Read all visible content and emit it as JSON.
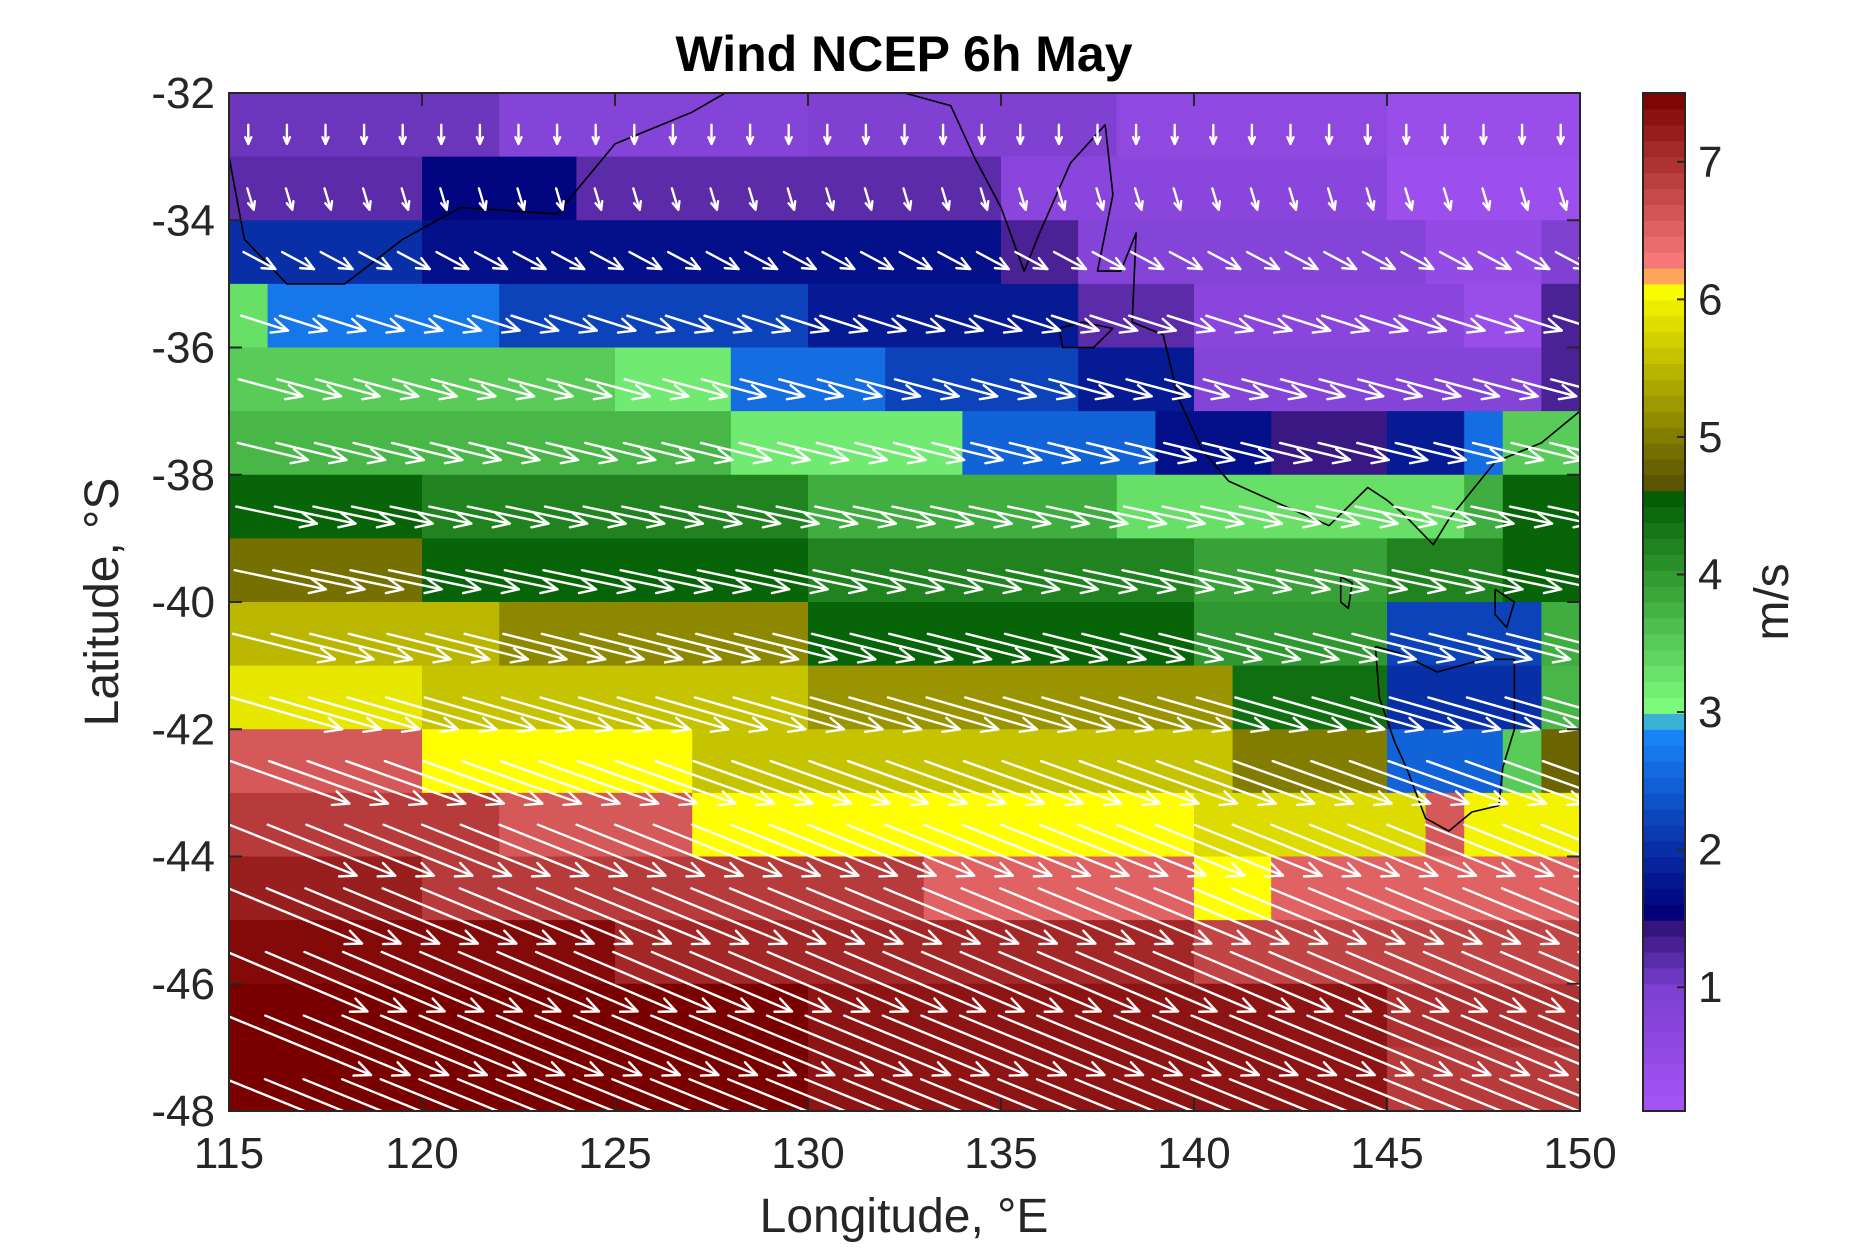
{
  "chart_data": {
    "type": "heatmap",
    "subtype": "wind speed map with vector arrows",
    "title": "Wind NCEP 6h May",
    "xlabel": "Longitude, °E",
    "ylabel": "Latitude, °S",
    "xlim": [
      115,
      150
    ],
    "ylim": [
      -48,
      -32
    ],
    "x_ticks": [
      115,
      120,
      125,
      130,
      135,
      140,
      145,
      150
    ],
    "y_ticks": [
      -32,
      -34,
      -36,
      -38,
      -40,
      -42,
      -44,
      -46,
      -48
    ],
    "x_tick_labels": [
      "115",
      "120",
      "125",
      "130",
      "135",
      "140",
      "145",
      "150"
    ],
    "y_tick_labels": [
      "-32",
      "-34",
      "-36",
      "-38",
      "-40",
      "-42",
      "-44",
      "-46",
      "-48"
    ],
    "colorbar": {
      "label": "m/s",
      "range": [
        0.1,
        7.5
      ],
      "ticks": [
        1,
        2,
        3,
        4,
        5,
        6,
        7
      ],
      "tick_labels": [
        "1",
        "2",
        "3",
        "4",
        "5",
        "6",
        "7"
      ],
      "colormap_stops": [
        {
          "value": 0.1,
          "color": "#a855f7"
        },
        {
          "value": 1.0,
          "color": "#7b3fcf"
        },
        {
          "value": 1.5,
          "color": "#2a0e70"
        },
        {
          "value": 1.55,
          "color": "#00007a"
        },
        {
          "value": 2.9,
          "color": "#1a8cff"
        },
        {
          "value": 3.0,
          "color": "#80ff80"
        },
        {
          "value": 4.6,
          "color": "#005a00"
        },
        {
          "value": 4.65,
          "color": "#5a5200"
        },
        {
          "value": 6.1,
          "color": "#ffff00"
        },
        {
          "value": 6.2,
          "color": "#ff8080"
        },
        {
          "value": 7.5,
          "color": "#7a0000"
        }
      ]
    },
    "grid": {
      "lon_start": 115.0,
      "lon_step": 1.0,
      "lon_count": 36,
      "lat_start": -32.5,
      "lat_step": -1.0,
      "lat_count": 16
    },
    "wind_speed_rows": [
      {
        "lat": -32.5,
        "segments": [
          [
            115,
            122,
            1.1
          ],
          [
            122,
            130,
            0.8
          ],
          [
            130,
            138,
            0.9
          ],
          [
            138,
            145,
            0.6
          ],
          [
            145,
            150,
            0.4
          ]
        ]
      },
      {
        "lat": -33.5,
        "segments": [
          [
            115,
            120,
            1.2
          ],
          [
            120,
            124,
            1.6
          ],
          [
            124,
            135,
            1.2
          ],
          [
            135,
            145,
            0.7
          ],
          [
            145,
            150,
            0.35
          ]
        ]
      },
      {
        "lat": -34.5,
        "segments": [
          [
            115,
            120,
            2.0
          ],
          [
            120,
            135,
            1.7
          ],
          [
            135,
            137,
            1.3
          ],
          [
            137,
            146,
            0.8
          ],
          [
            146,
            149,
            0.5
          ],
          [
            149,
            150,
            0.9
          ]
        ]
      },
      {
        "lat": -35.5,
        "segments": [
          [
            115,
            116,
            3.3
          ],
          [
            116,
            122,
            2.7
          ],
          [
            122,
            130,
            2.2
          ],
          [
            130,
            137,
            1.8
          ],
          [
            137,
            140,
            1.2
          ],
          [
            140,
            147,
            0.7
          ],
          [
            147,
            149,
            0.4
          ],
          [
            149,
            150,
            1.3
          ]
        ]
      },
      {
        "lat": -36.5,
        "segments": [
          [
            115,
            125,
            3.5
          ],
          [
            125,
            128,
            3.2
          ],
          [
            128,
            132,
            2.6
          ],
          [
            132,
            137,
            2.2
          ],
          [
            137,
            140,
            1.8
          ],
          [
            140,
            149,
            0.8
          ],
          [
            149,
            150,
            1.3
          ]
        ]
      },
      {
        "lat": -37.5,
        "segments": [
          [
            115,
            128,
            3.7
          ],
          [
            128,
            134,
            3.2
          ],
          [
            134,
            139,
            2.5
          ],
          [
            139,
            142,
            1.7
          ],
          [
            142,
            145,
            1.4
          ],
          [
            145,
            147,
            1.8
          ],
          [
            147,
            148,
            2.6
          ],
          [
            148,
            150,
            3.5
          ]
        ]
      },
      {
        "lat": -38.5,
        "segments": [
          [
            115,
            120,
            4.5
          ],
          [
            120,
            130,
            4.2
          ],
          [
            130,
            138,
            3.8
          ],
          [
            138,
            147,
            3.3
          ],
          [
            147,
            148,
            3.8
          ],
          [
            148,
            150,
            4.5
          ]
        ]
      },
      {
        "lat": -39.5,
        "segments": [
          [
            115,
            120,
            4.9
          ],
          [
            120,
            130,
            4.5
          ],
          [
            130,
            140,
            4.2
          ],
          [
            140,
            145,
            3.9
          ],
          [
            145,
            148,
            4.2
          ],
          [
            148,
            150,
            4.5
          ]
        ]
      },
      {
        "lat": -40.5,
        "segments": [
          [
            115,
            122,
            5.5
          ],
          [
            122,
            130,
            5.1
          ],
          [
            130,
            140,
            4.5
          ],
          [
            140,
            145,
            4.0
          ],
          [
            145,
            149,
            2.2
          ],
          [
            149,
            150,
            3.8
          ]
        ]
      },
      {
        "lat": -41.5,
        "segments": [
          [
            115,
            120,
            5.9
          ],
          [
            120,
            130,
            5.6
          ],
          [
            130,
            141,
            5.2
          ],
          [
            141,
            145,
            4.4
          ],
          [
            145,
            149,
            2.0
          ],
          [
            149,
            150,
            3.7
          ]
        ]
      },
      {
        "lat": -42.5,
        "segments": [
          [
            115,
            120,
            6.6
          ],
          [
            120,
            127,
            6.1
          ],
          [
            127,
            141,
            5.6
          ],
          [
            141,
            145,
            5.0
          ],
          [
            145,
            148,
            2.5
          ],
          [
            148,
            149,
            3.5
          ],
          [
            149,
            150,
            4.8
          ]
        ]
      },
      {
        "lat": -43.5,
        "segments": [
          [
            115,
            122,
            6.9
          ],
          [
            122,
            127,
            6.6
          ],
          [
            127,
            140,
            6.1
          ],
          [
            140,
            146,
            5.8
          ],
          [
            146,
            147,
            6.6
          ],
          [
            147,
            150,
            6.0
          ]
        ]
      },
      {
        "lat": -44.5,
        "segments": [
          [
            115,
            120,
            7.2
          ],
          [
            120,
            133,
            6.9
          ],
          [
            133,
            140,
            6.5
          ],
          [
            140,
            142,
            6.1
          ],
          [
            142,
            150,
            6.5
          ]
        ]
      },
      {
        "lat": -45.5,
        "segments": [
          [
            115,
            125,
            7.4
          ],
          [
            125,
            140,
            7.1
          ],
          [
            140,
            150,
            6.8
          ]
        ]
      },
      {
        "lat": -46.5,
        "segments": [
          [
            115,
            130,
            7.5
          ],
          [
            130,
            145,
            7.3
          ],
          [
            145,
            150,
            7.0
          ]
        ]
      },
      {
        "lat": -47.5,
        "segments": [
          [
            115,
            130,
            7.5
          ],
          [
            130,
            145,
            7.3
          ],
          [
            145,
            150,
            6.9
          ]
        ]
      }
    ],
    "wind_vectors": {
      "description": "White arrows; direction mostly eastward with southward component turning east in south",
      "rows": [
        {
          "lat": -32.5,
          "u": 0.0,
          "v": -0.9
        },
        {
          "lat": -33.5,
          "u": 0.3,
          "v": -1.0
        },
        {
          "lat": -34.5,
          "u": 1.5,
          "v": -0.8
        },
        {
          "lat": -35.5,
          "u": 2.2,
          "v": -0.7
        },
        {
          "lat": -36.5,
          "u": 3.0,
          "v": -0.8
        },
        {
          "lat": -37.5,
          "u": 3.3,
          "v": -0.8
        },
        {
          "lat": -38.5,
          "u": 3.8,
          "v": -0.8
        },
        {
          "lat": -39.5,
          "u": 4.3,
          "v": -0.9
        },
        {
          "lat": -40.5,
          "u": 4.8,
          "v": -1.2
        },
        {
          "lat": -41.5,
          "u": 5.2,
          "v": -1.5
        },
        {
          "lat": -42.5,
          "u": 5.6,
          "v": -2.0
        },
        {
          "lat": -43.5,
          "u": 6.0,
          "v": -2.4
        },
        {
          "lat": -44.5,
          "u": 6.3,
          "v": -2.6
        },
        {
          "lat": -45.5,
          "u": 6.6,
          "v": -2.8
        },
        {
          "lat": -46.5,
          "u": 6.8,
          "v": -2.8
        },
        {
          "lat": -47.5,
          "u": 6.9,
          "v": -2.8
        }
      ]
    },
    "coastline": {
      "australia_south": [
        [
          115,
          -33.0
        ],
        [
          115.4,
          -34.3
        ],
        [
          116.5,
          -35.0
        ],
        [
          118,
          -35.0
        ],
        [
          119.5,
          -34.3
        ],
        [
          121,
          -33.8
        ],
        [
          123.5,
          -33.9
        ],
        [
          125,
          -32.8
        ],
        [
          127,
          -32.3
        ],
        [
          129,
          -31.6
        ],
        [
          131,
          -31.5
        ],
        [
          132.5,
          -32.0
        ],
        [
          133.7,
          -32.2
        ],
        [
          134.3,
          -33.0
        ],
        [
          135.0,
          -33.8
        ],
        [
          135.6,
          -34.8
        ],
        [
          136.0,
          -34.2
        ],
        [
          136.8,
          -33.1
        ],
        [
          137.7,
          -32.5
        ],
        [
          137.9,
          -33.6
        ],
        [
          137.5,
          -34.8
        ],
        [
          138.1,
          -34.8
        ],
        [
          138.5,
          -34.2
        ],
        [
          138.4,
          -35.6
        ],
        [
          139.2,
          -35.8
        ],
        [
          139.6,
          -36.8
        ],
        [
          140.2,
          -37.6
        ],
        [
          140.9,
          -38.1
        ],
        [
          142,
          -38.4
        ],
        [
          143.5,
          -38.8
        ],
        [
          144.5,
          -38.2
        ],
        [
          145.0,
          -38.4
        ],
        [
          145.4,
          -38.6
        ],
        [
          146.2,
          -39.1
        ],
        [
          146.6,
          -38.7
        ],
        [
          147.8,
          -37.8
        ],
        [
          149.0,
          -37.5
        ],
        [
          150.0,
          -37.0
        ]
      ],
      "kangaroo_island": [
        [
          136.5,
          -35.7
        ],
        [
          137.1,
          -35.6
        ],
        [
          137.9,
          -35.7
        ],
        [
          137.4,
          -36.0
        ],
        [
          136.6,
          -36.0
        ],
        [
          136.5,
          -35.7
        ]
      ],
      "tasmania": [
        [
          144.7,
          -40.7
        ],
        [
          145.3,
          -40.8
        ],
        [
          146.3,
          -41.1
        ],
        [
          147.5,
          -40.9
        ],
        [
          148.3,
          -40.9
        ],
        [
          148.3,
          -42.0
        ],
        [
          148.0,
          -42.6
        ],
        [
          147.9,
          -43.2
        ],
        [
          147.2,
          -43.3
        ],
        [
          146.6,
          -43.6
        ],
        [
          146.0,
          -43.4
        ],
        [
          145.5,
          -42.6
        ],
        [
          145.2,
          -42.2
        ],
        [
          144.8,
          -41.5
        ],
        [
          144.7,
          -40.7
        ]
      ],
      "king_island": [
        [
          143.8,
          -39.6
        ],
        [
          144.1,
          -39.7
        ],
        [
          144.0,
          -40.1
        ],
        [
          143.8,
          -40.0
        ],
        [
          143.8,
          -39.6
        ]
      ],
      "flinders_island": [
        [
          147.8,
          -39.8
        ],
        [
          148.3,
          -40.0
        ],
        [
          148.1,
          -40.4
        ],
        [
          147.8,
          -40.2
        ],
        [
          147.8,
          -39.8
        ]
      ]
    }
  }
}
